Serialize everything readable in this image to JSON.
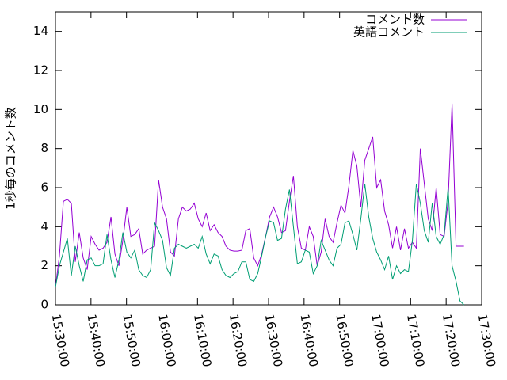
{
  "chart_data": {
    "type": "line",
    "ylabel": "1秒毎のコメント数",
    "x": [
      "15:30:00",
      "15:31:07",
      "15:32:14",
      "15:33:21",
      "15:34:28",
      "15:35:35",
      "15:36:42",
      "15:37:49",
      "15:38:56",
      "15:40:03",
      "15:41:10",
      "15:42:17",
      "15:43:24",
      "15:44:31",
      "15:45:38",
      "15:46:45",
      "15:47:52",
      "15:48:59",
      "15:50:06",
      "15:51:13",
      "15:52:20",
      "15:53:27",
      "15:54:34",
      "15:55:41",
      "15:56:48",
      "15:57:55",
      "15:59:02",
      "16:00:09",
      "16:01:16",
      "16:02:23",
      "16:03:30",
      "16:04:37",
      "16:05:44",
      "16:06:51",
      "16:07:58",
      "16:09:05",
      "16:10:12",
      "16:11:19",
      "16:12:26",
      "16:13:33",
      "16:14:40",
      "16:15:47",
      "16:16:54",
      "16:18:01",
      "16:19:08",
      "16:20:15",
      "16:21:22",
      "16:22:29",
      "16:23:36",
      "16:24:43",
      "16:25:50",
      "16:26:57",
      "16:28:04",
      "16:29:11",
      "16:30:18",
      "16:31:25",
      "16:32:32",
      "16:33:39",
      "16:34:46",
      "16:35:53",
      "16:37:00",
      "16:38:07",
      "16:39:14",
      "16:40:21",
      "16:41:28",
      "16:42:35",
      "16:43:42",
      "16:44:49",
      "16:45:56",
      "16:47:03",
      "16:48:10",
      "16:49:17",
      "16:50:24",
      "16:51:31",
      "16:52:38",
      "16:53:45",
      "16:54:52",
      "16:55:59",
      "16:57:06",
      "16:58:13",
      "16:59:20",
      "17:00:27",
      "17:01:34",
      "17:02:41",
      "17:03:48",
      "17:04:55",
      "17:06:02",
      "17:07:09",
      "17:08:16",
      "17:09:23",
      "17:10:30",
      "17:11:37",
      "17:12:44",
      "17:13:51",
      "17:14:58",
      "17:16:05",
      "17:17:12",
      "17:18:19",
      "17:19:26",
      "17:20:33",
      "17:21:40",
      "17:22:47",
      "17:23:54",
      "17:25:01"
    ],
    "series": [
      {
        "name": "コメント数",
        "color": "#9400d3",
        "values": [
          0.9,
          2.5,
          5.3,
          5.4,
          5.2,
          2.2,
          3.7,
          2.4,
          1.8,
          3.5,
          3.1,
          2.8,
          2.9,
          3.2,
          4.5,
          2.6,
          2.0,
          3.3,
          5.0,
          3.5,
          3.6,
          3.9,
          2.6,
          2.8,
          2.9,
          3.0,
          6.4,
          5.0,
          4.4,
          2.7,
          2.5,
          4.4,
          5.0,
          4.8,
          4.9,
          5.2,
          4.4,
          4.0,
          4.7,
          3.8,
          4.1,
          3.7,
          3.5,
          3.0,
          2.8,
          2.75,
          2.75,
          2.8,
          3.8,
          3.9,
          2.4,
          2.0,
          2.6,
          3.5,
          4.5,
          5.0,
          4.5,
          3.7,
          3.8,
          5.3,
          6.6,
          4.0,
          2.9,
          2.8,
          4.0,
          3.5,
          2.0,
          2.7,
          4.4,
          3.5,
          3.2,
          4.2,
          5.1,
          4.7,
          6.1,
          7.9,
          7.1,
          5.0,
          7.4,
          8.0,
          8.6,
          6.0,
          6.4,
          4.8,
          4.1,
          2.9,
          4.0,
          2.8,
          3.9,
          2.9,
          3.2,
          2.9,
          8.0,
          6.2,
          4.4,
          3.8,
          6.0,
          3.6,
          3.5,
          5.3,
          10.3,
          3.0,
          3.0,
          3.0
        ]
      },
      {
        "name": "英語コメント",
        "color": "#009e73",
        "values": [
          0.9,
          2.0,
          2.7,
          3.4,
          1.5,
          3.0,
          2.0,
          1.2,
          2.3,
          2.4,
          2.0,
          2.0,
          2.1,
          3.6,
          2.3,
          1.4,
          2.3,
          3.7,
          2.7,
          2.4,
          2.8,
          1.8,
          1.5,
          1.4,
          1.8,
          4.2,
          3.8,
          3.3,
          1.9,
          1.5,
          2.9,
          3.1,
          3.0,
          2.9,
          3.0,
          3.1,
          2.9,
          3.5,
          2.6,
          2.1,
          2.6,
          2.5,
          1.8,
          1.5,
          1.4,
          1.6,
          1.7,
          2.2,
          2.2,
          1.3,
          1.2,
          1.6,
          2.5,
          3.5,
          4.3,
          4.2,
          3.3,
          3.4,
          4.9,
          5.9,
          4.0,
          2.1,
          2.2,
          2.8,
          2.7,
          1.6,
          2.0,
          3.3,
          2.8,
          2.3,
          2.0,
          2.9,
          3.1,
          4.2,
          4.3,
          3.6,
          2.8,
          4.4,
          6.2,
          4.5,
          3.4,
          2.7,
          2.3,
          1.8,
          2.5,
          1.3,
          2.0,
          1.6,
          1.8,
          1.7,
          3.3,
          6.2,
          5.2,
          3.8,
          3.2,
          5.2,
          3.5,
          3.1,
          3.6,
          6.0,
          2.0,
          1.2,
          0.2,
          0
        ]
      }
    ],
    "xlim": [
      "15:30:00",
      "17:30:00"
    ],
    "xticks": [
      "15:30:00",
      "15:40:00",
      "15:50:00",
      "16:00:00",
      "16:10:00",
      "16:20:00",
      "16:30:00",
      "16:40:00",
      "16:50:00",
      "17:00:00",
      "17:10:00",
      "17:20:00",
      "17:30:00"
    ],
    "ylim": [
      0,
      15
    ],
    "yticks": [
      0,
      2,
      4,
      6,
      8,
      10,
      12,
      14
    ],
    "legend": "top-right"
  }
}
